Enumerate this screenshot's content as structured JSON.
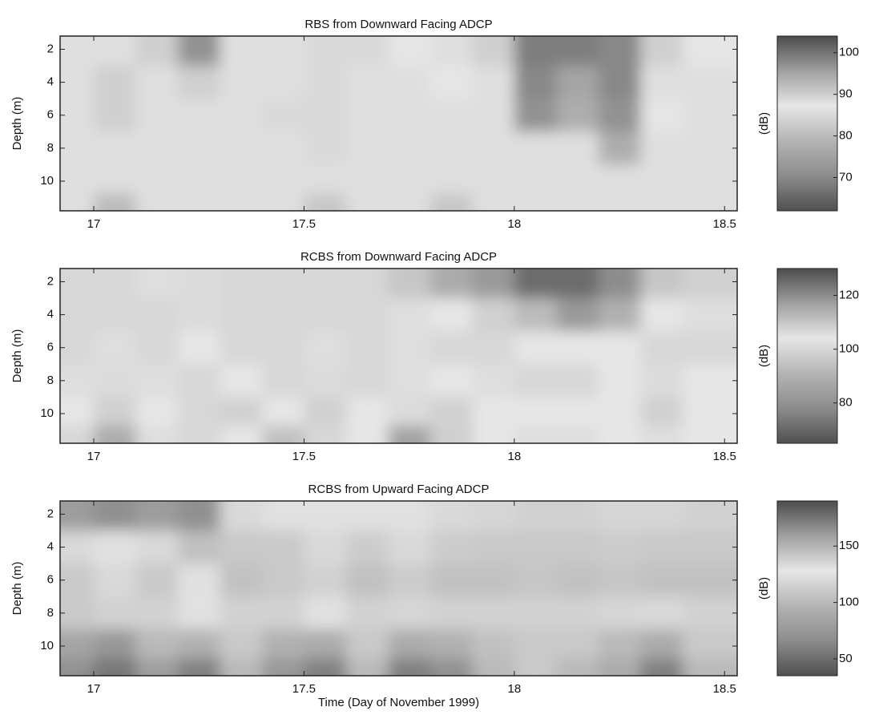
{
  "chart_data": [
    {
      "type": "heatmap",
      "title": "RBS from Downward Facing ADCP",
      "ylabel": "Depth (m)",
      "colorbar_label": "(dB)",
      "x": [
        16.95,
        17.05,
        17.15,
        17.25,
        17.35,
        17.45,
        17.55,
        17.65,
        17.75,
        17.85,
        17.95,
        18.05,
        18.15,
        18.25,
        18.35,
        18.45
      ],
      "y": [
        2,
        4,
        6,
        8,
        10,
        11.5
      ],
      "z": [
        [
          86,
          88,
          90,
          97,
          88,
          86,
          85,
          85,
          87,
          88,
          90,
          99,
          99,
          98,
          90,
          87
        ],
        [
          86,
          90,
          88,
          90,
          88,
          86,
          85,
          86,
          88,
          87,
          88,
          98,
          95,
          98,
          88,
          86
        ],
        [
          86,
          90,
          86,
          88,
          88,
          85,
          85,
          86,
          88,
          86,
          86,
          97,
          94,
          97,
          87,
          86
        ],
        [
          86,
          88,
          86,
          86,
          88,
          86,
          85,
          86,
          88,
          86,
          86,
          88,
          88,
          94,
          86,
          86
        ],
        [
          86,
          86,
          86,
          86,
          86,
          86,
          86,
          86,
          88,
          86,
          86,
          86,
          86,
          86,
          86,
          86
        ],
        [
          86,
          80,
          86,
          86,
          86,
          86,
          82,
          86,
          86,
          82,
          86,
          86,
          86,
          86,
          86,
          86
        ]
      ],
      "xlim": [
        16.92,
        18.53
      ],
      "xticks": [
        17,
        17.5,
        18,
        18.5
      ],
      "ylim": [
        11.8,
        1.2
      ],
      "yticks": [
        2,
        4,
        6,
        8,
        10
      ],
      "clim": [
        62,
        104
      ],
      "cticks": [
        70,
        80,
        90,
        100
      ],
      "colormap": [
        "#505050",
        "#8c8c8c",
        "#b4b4b4",
        "#e6e6e6",
        "#a0a0a0",
        "#4c4c4c"
      ]
    },
    {
      "type": "heatmap",
      "title": "RCBS from Downward Facing ADCP",
      "ylabel": "Depth (m)",
      "colorbar_label": "(dB)",
      "x": [
        16.95,
        17.05,
        17.15,
        17.25,
        17.35,
        17.45,
        17.55,
        17.65,
        17.75,
        17.85,
        17.95,
        18.05,
        18.15,
        18.25,
        18.35,
        18.45
      ],
      "y": [
        2,
        4,
        6,
        8,
        10,
        11.5
      ],
      "z": [
        [
          100,
          100,
          102,
          106,
          100,
          100,
          100,
          100,
          110,
          115,
          118,
          125,
          125,
          120,
          110,
          108
        ],
        [
          100,
          100,
          100,
          106,
          100,
          100,
          100,
          100,
          102,
          104,
          108,
          112,
          118,
          114,
          104,
          102
        ],
        [
          100,
          102,
          100,
          104,
          100,
          100,
          102,
          100,
          102,
          100,
          100,
          104,
          104,
          104,
          100,
          100
        ],
        [
          102,
          106,
          102,
          100,
          104,
          100,
          106,
          100,
          102,
          104,
          102,
          100,
          100,
          104,
          106,
          104
        ],
        [
          104,
          108,
          104,
          100,
          108,
          104,
          108,
          104,
          106,
          108,
          104,
          104,
          104,
          104,
          108,
          104
        ],
        [
          100,
          88,
          102,
          100,
          104,
          94,
          100,
          104,
          85,
          98,
          104,
          102,
          102,
          104,
          102,
          104
        ]
      ],
      "xlim": [
        16.92,
        18.53
      ],
      "xticks": [
        17,
        17.5,
        18,
        18.5
      ],
      "ylim": [
        11.8,
        1.2
      ],
      "yticks": [
        2,
        4,
        6,
        8,
        10
      ],
      "clim": [
        65,
        130
      ],
      "cticks": [
        80,
        100,
        120
      ],
      "colormap": [
        "#505050",
        "#8c8c8c",
        "#b4b4b4",
        "#e6e6e6",
        "#a0a0a0",
        "#4c4c4c"
      ]
    },
    {
      "type": "heatmap",
      "title": "RCBS from Upward Facing ADCP",
      "ylabel": "Depth (m)",
      "colorbar_label": "(dB)",
      "xlabel": "Time (Day of November 1999)",
      "x": [
        16.95,
        17.05,
        17.15,
        17.25,
        17.35,
        17.45,
        17.55,
        17.65,
        17.75,
        17.85,
        17.95,
        18.05,
        18.15,
        18.25,
        18.35,
        18.45
      ],
      "y": [
        2,
        4,
        6,
        8,
        10,
        11.5
      ],
      "z": [
        [
          160,
          165,
          160,
          165,
          120,
          125,
          130,
          130,
          125,
          120,
          118,
          115,
          115,
          118,
          118,
          115
        ],
        [
          120,
          130,
          120,
          145,
          110,
          110,
          120,
          112,
          120,
          112,
          110,
          110,
          110,
          112,
          110,
          110
        ],
        [
          110,
          120,
          110,
          130,
          105,
          110,
          115,
          105,
          112,
          105,
          105,
          108,
          105,
          108,
          105,
          105
        ],
        [
          110,
          115,
          115,
          125,
          115,
          115,
          125,
          115,
          118,
          115,
          115,
          115,
          115,
          118,
          120,
          115
        ],
        [
          85,
          75,
          100,
          95,
          110,
          95,
          90,
          110,
          90,
          95,
          105,
          110,
          110,
          100,
          90,
          110
        ],
        [
          70,
          55,
          80,
          60,
          100,
          75,
          60,
          100,
          60,
          70,
          100,
          110,
          100,
          90,
          60,
          100
        ]
      ],
      "xlim": [
        16.92,
        18.53
      ],
      "xticks": [
        17,
        17.5,
        18,
        18.5
      ],
      "ylim": [
        11.8,
        1.2
      ],
      "yticks": [
        2,
        4,
        6,
        8,
        10
      ],
      "clim": [
        35,
        190
      ],
      "cticks": [
        50,
        100,
        150
      ],
      "colormap": [
        "#505050",
        "#8c8c8c",
        "#b4b4b4",
        "#e6e6e6",
        "#a0a0a0",
        "#4c4c4c"
      ]
    }
  ]
}
